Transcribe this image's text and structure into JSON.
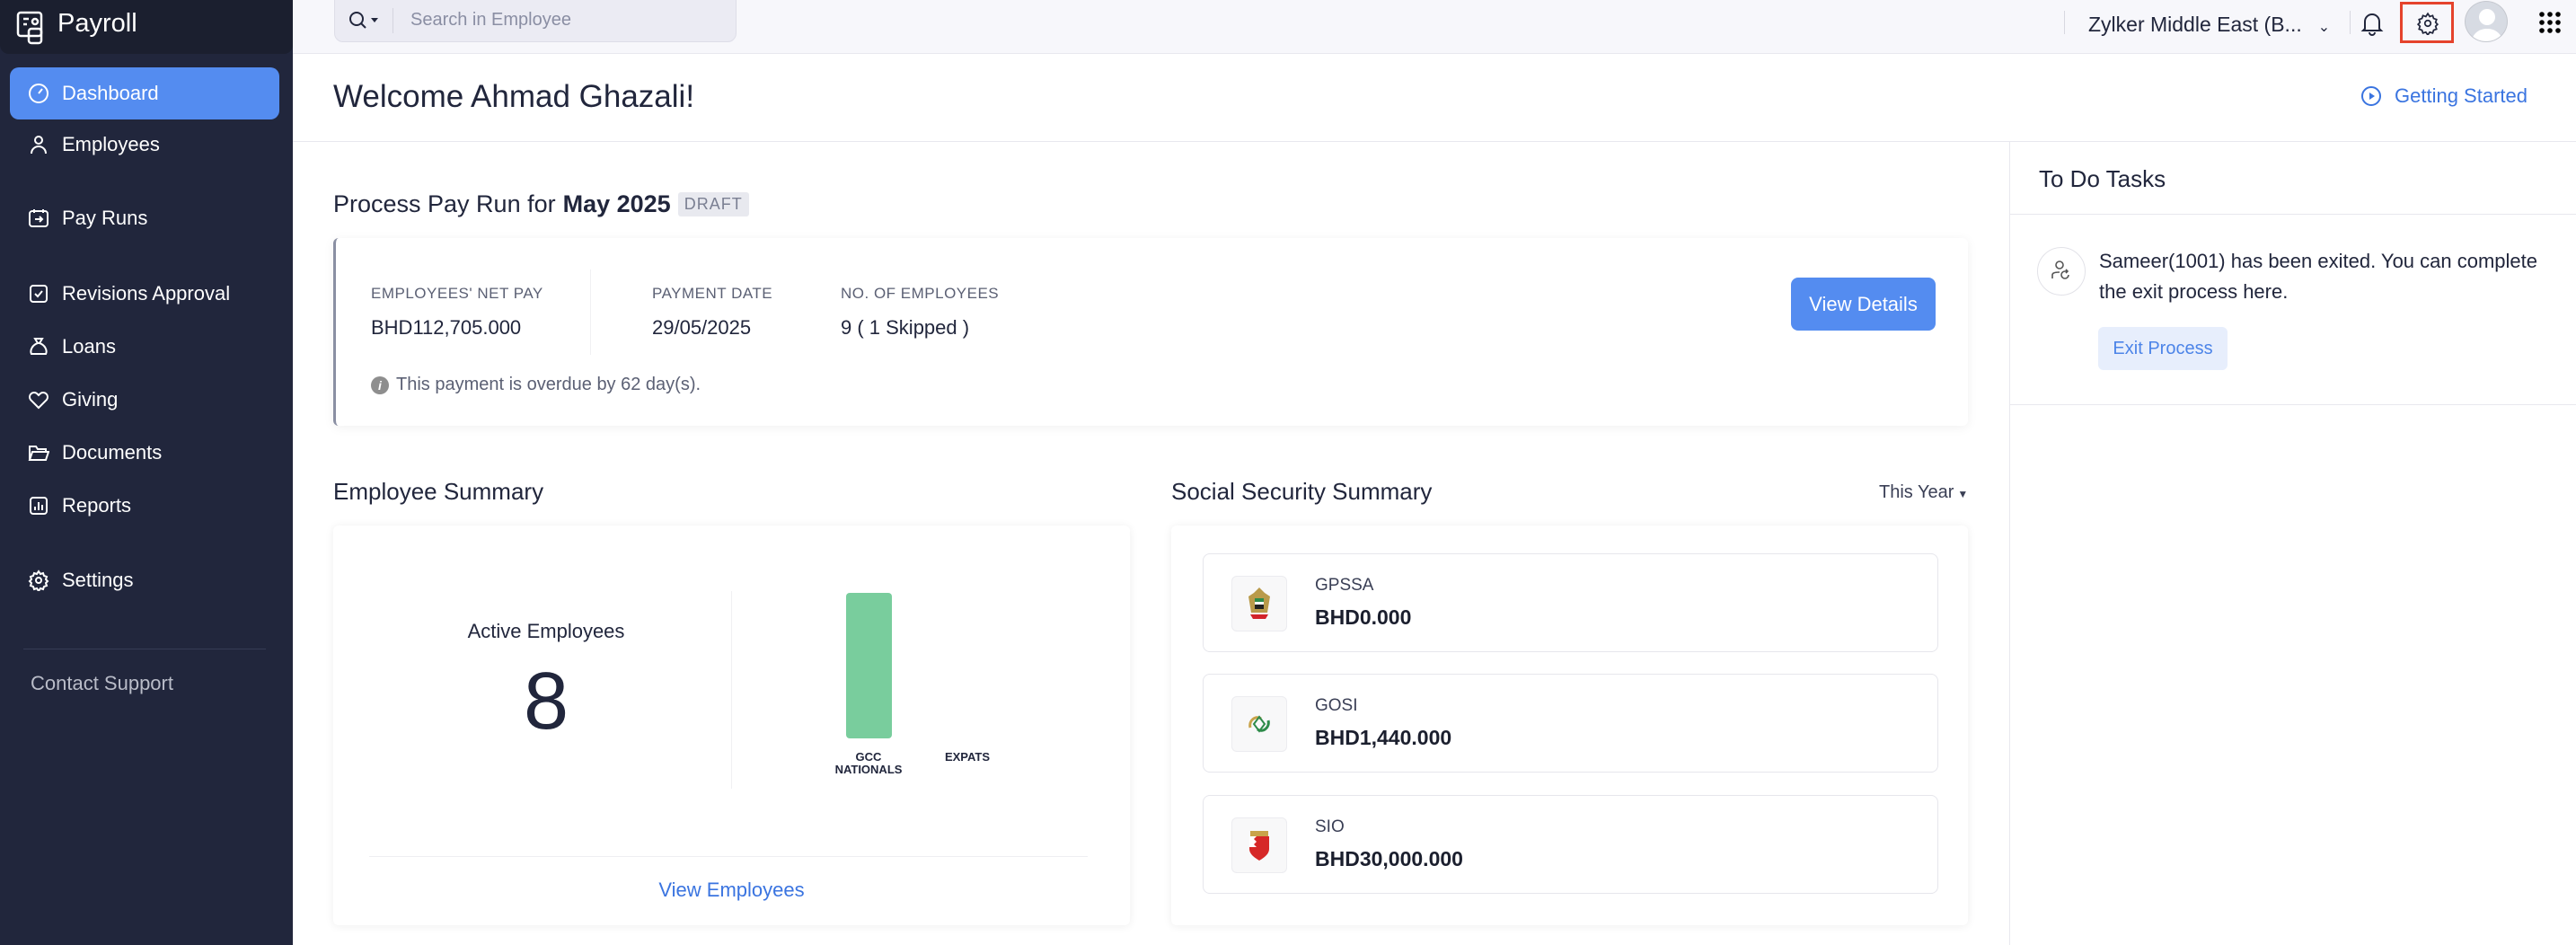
{
  "app": {
    "name": "Payroll"
  },
  "sidebar": {
    "items": [
      {
        "label": "Dashboard",
        "icon": "dashboard-icon",
        "active": true
      },
      {
        "label": "Employees",
        "icon": "person-icon"
      },
      {
        "label": "Pay Runs",
        "icon": "pay-runs-icon"
      },
      {
        "label": "Revisions Approval",
        "icon": "check-square-icon"
      },
      {
        "label": "Loans",
        "icon": "money-bag-icon"
      },
      {
        "label": "Giving",
        "icon": "heart-icon"
      },
      {
        "label": "Documents",
        "icon": "folder-icon"
      },
      {
        "label": "Reports",
        "icon": "bar-chart-icon"
      },
      {
        "label": "Settings",
        "icon": "gear-icon"
      }
    ],
    "contact_support": "Contact Support"
  },
  "topbar": {
    "search_placeholder": "Search in Employee",
    "organization": "Zylker Middle East (B...",
    "highlight_color": "#e5432c"
  },
  "header": {
    "welcome": "Welcome Ahmad Ghazali!",
    "getting_started": "Getting Started"
  },
  "payrun": {
    "title_prefix": "Process Pay Run for",
    "period": "May 2025",
    "status": "DRAFT",
    "net_pay_label": "EMPLOYEES' NET PAY",
    "net_pay": "BHD112,705.000",
    "payment_date_label": "PAYMENT DATE",
    "payment_date": "29/05/2025",
    "employees_label": "NO. OF EMPLOYEES",
    "employees": "9 ( 1 Skipped )",
    "view_details": "View Details",
    "overdue_note": "This payment is overdue by 62 day(s)."
  },
  "employee_summary": {
    "title": "Employee Summary",
    "active_label": "Active Employees",
    "active_count": "8",
    "view_link": "View Employees"
  },
  "chart_data": {
    "type": "bar",
    "categories": [
      "GCC NATIONALS",
      "EXPATS"
    ],
    "values": [
      8,
      0
    ],
    "colors": [
      "#79cd9d",
      "#79cd9d"
    ],
    "title": "",
    "xlabel": "",
    "ylabel": "",
    "ylim": [
      0,
      8
    ],
    "grid": false
  },
  "social_security": {
    "title": "Social Security Summary",
    "period": "This Year",
    "items": [
      {
        "name": "GPSSA",
        "amount": "BHD0.000"
      },
      {
        "name": "GOSI",
        "amount": "BHD1,440.000"
      },
      {
        "name": "SIO",
        "amount": "BHD30,000.000"
      }
    ]
  },
  "todo": {
    "title": "To Do Tasks",
    "task_text": "Sameer(1001) has been exited. You can complete the exit process here.",
    "action": "Exit Process"
  }
}
